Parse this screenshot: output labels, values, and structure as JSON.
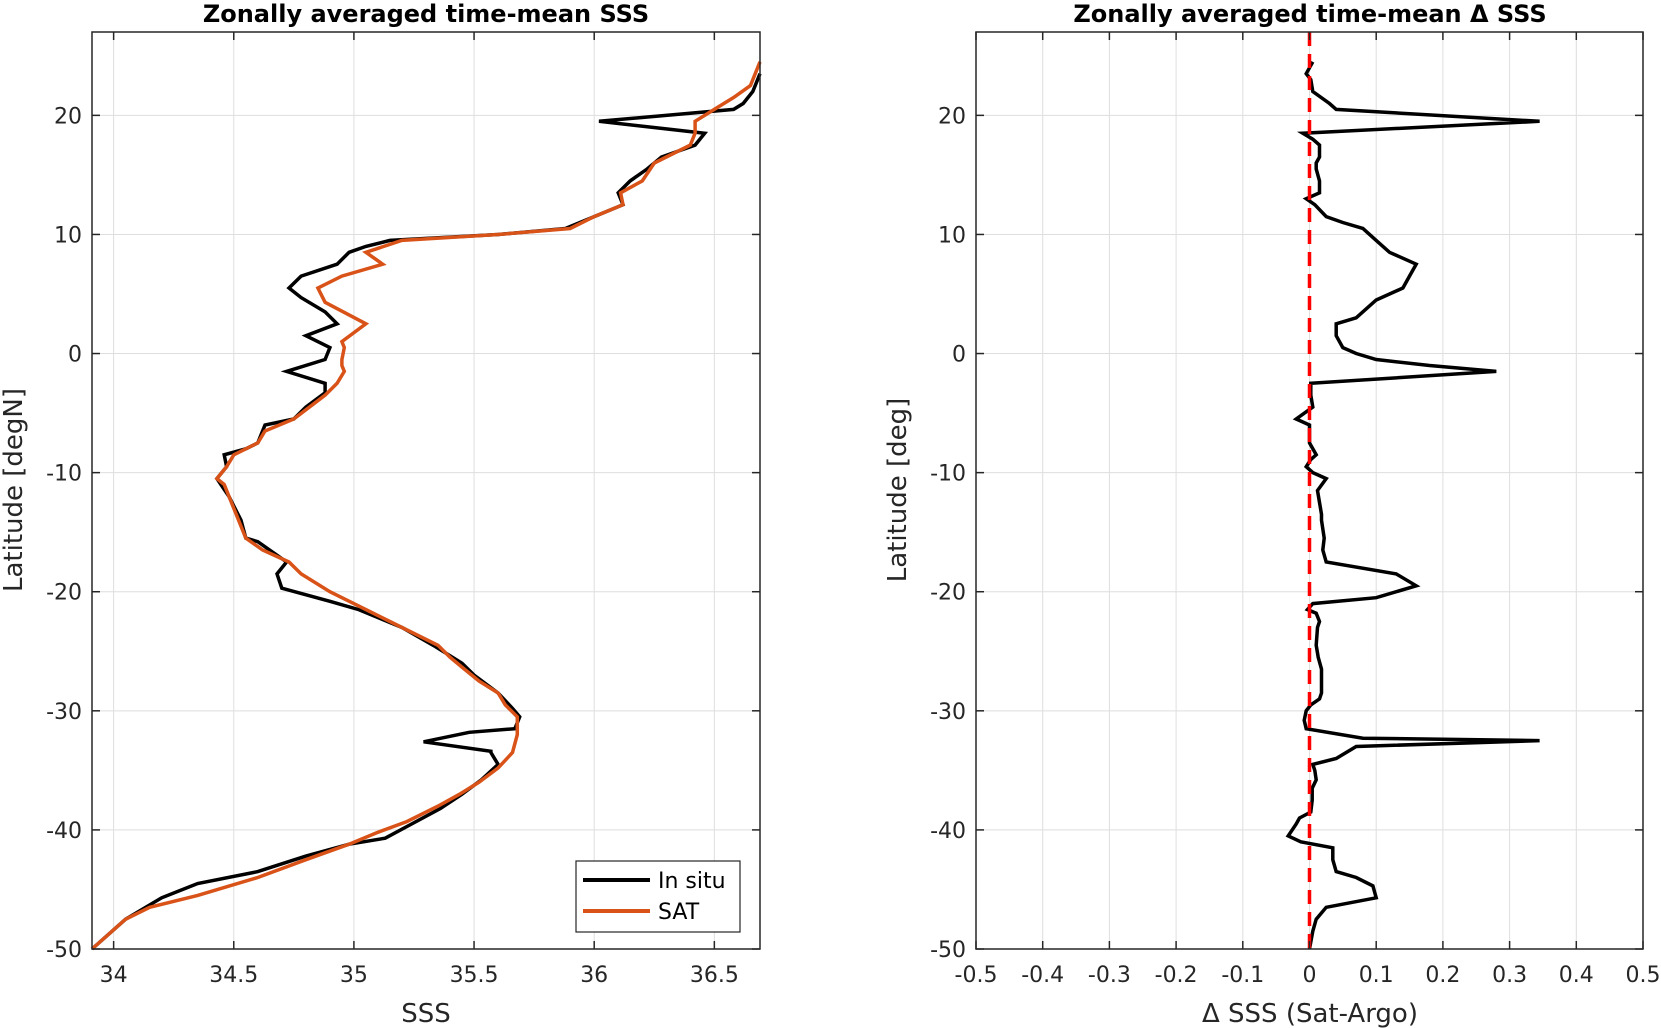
{
  "chart_data": [
    {
      "type": "line",
      "title": "Zonally averaged time-mean SSS",
      "xlabel": "SSS",
      "ylabel": "Latitude [degN]",
      "xlim": [
        33.91,
        36.69
      ],
      "ylim": [
        -50,
        27
      ],
      "xticks": [
        "34",
        "34.5",
        "35",
        "35.5",
        "36",
        "36.5"
      ],
      "yticks": [
        "-50",
        "-40",
        "-30",
        "-20",
        "-10",
        "0",
        "10",
        "20"
      ],
      "grid": true,
      "legend": "bottom-right",
      "series": [
        {
          "name": "In situ",
          "color": "#000000",
          "points": [
            [
              33.91,
              -50
            ],
            [
              34.05,
              -47.5
            ],
            [
              34.2,
              -45.7
            ],
            [
              34.35,
              -44.5
            ],
            [
              34.6,
              -43.5
            ],
            [
              34.8,
              -42.2
            ],
            [
              34.98,
              -41.2
            ],
            [
              35.13,
              -40.7
            ],
            [
              35.24,
              -39.5
            ],
            [
              35.36,
              -38.2
            ],
            [
              35.45,
              -37
            ],
            [
              35.53,
              -35.8
            ],
            [
              35.6,
              -34.5
            ],
            [
              35.57,
              -33.5
            ],
            [
              35.57,
              -33.4
            ],
            [
              35.29,
              -32.6
            ],
            [
              35.48,
              -31.8
            ],
            [
              35.67,
              -31.5
            ],
            [
              35.69,
              -30.5
            ],
            [
              35.66,
              -29.8
            ],
            [
              35.6,
              -28.5
            ],
            [
              35.5,
              -27
            ],
            [
              35.45,
              -26
            ],
            [
              35.33,
              -24.5
            ],
            [
              35.2,
              -23
            ],
            [
              35.02,
              -21.5
            ],
            [
              34.9,
              -20.8
            ],
            [
              34.7,
              -19.7
            ],
            [
              34.68,
              -18.5
            ],
            [
              34.72,
              -17.5
            ],
            [
              34.6,
              -15.8
            ],
            [
              34.55,
              -15.5
            ],
            [
              34.53,
              -14
            ],
            [
              34.48,
              -12
            ],
            [
              34.43,
              -10.5
            ],
            [
              34.47,
              -9.5
            ],
            [
              34.46,
              -8.5
            ],
            [
              34.55,
              -8
            ],
            [
              34.6,
              -7.5
            ],
            [
              34.63,
              -6
            ],
            [
              34.75,
              -5.5
            ],
            [
              34.8,
              -4.5
            ],
            [
              34.88,
              -3.3
            ],
            [
              34.88,
              -2.5
            ],
            [
              34.72,
              -1.5
            ],
            [
              34.88,
              -0.5
            ],
            [
              34.9,
              0.5
            ],
            [
              34.8,
              1.5
            ],
            [
              34.93,
              2.5
            ],
            [
              34.88,
              3.5
            ],
            [
              34.78,
              4.7
            ],
            [
              34.73,
              5.5
            ],
            [
              34.78,
              6.5
            ],
            [
              34.93,
              7.5
            ],
            [
              34.98,
              8.5
            ],
            [
              35.05,
              9
            ],
            [
              35.15,
              9.5
            ],
            [
              35.6,
              10
            ],
            [
              35.88,
              10.5
            ],
            [
              36,
              11.5
            ],
            [
              36.12,
              12.5
            ],
            [
              36.1,
              13.5
            ],
            [
              36.15,
              14.5
            ],
            [
              36.22,
              15.5
            ],
            [
              36.28,
              16.5
            ],
            [
              36.42,
              17.5
            ],
            [
              36.46,
              18.5
            ],
            [
              36.02,
              19.5
            ],
            [
              36.58,
              20.5
            ],
            [
              36.62,
              21
            ],
            [
              36.66,
              22
            ],
            [
              36.69,
              23.5
            ]
          ]
        },
        {
          "name": "SAT",
          "color": "#d95319",
          "points": [
            [
              33.91,
              -50
            ],
            [
              34.05,
              -47.5
            ],
            [
              34.15,
              -46.5
            ],
            [
              34.35,
              -45.5
            ],
            [
              34.6,
              -44
            ],
            [
              34.8,
              -42.5
            ],
            [
              34.98,
              -41.2
            ],
            [
              35.1,
              -40.2
            ],
            [
              35.22,
              -39.3
            ],
            [
              35.35,
              -38
            ],
            [
              35.44,
              -37
            ],
            [
              35.52,
              -36
            ],
            [
              35.6,
              -34.8
            ],
            [
              35.66,
              -33.5
            ],
            [
              35.68,
              -32
            ],
            [
              35.68,
              -30.5
            ],
            [
              35.63,
              -29.5
            ],
            [
              35.6,
              -28.5
            ],
            [
              35.52,
              -27.5
            ],
            [
              35.46,
              -26.5
            ],
            [
              35.4,
              -25.5
            ],
            [
              35.35,
              -24.5
            ],
            [
              35.2,
              -23
            ],
            [
              35.05,
              -21.5
            ],
            [
              34.9,
              -20
            ],
            [
              34.78,
              -18.5
            ],
            [
              34.73,
              -17.5
            ],
            [
              34.62,
              -16.5
            ],
            [
              34.55,
              -15.5
            ],
            [
              34.5,
              -13
            ],
            [
              34.46,
              -11
            ],
            [
              34.43,
              -10.5
            ],
            [
              34.47,
              -9.5
            ],
            [
              34.5,
              -8.5
            ],
            [
              34.6,
              -7.5
            ],
            [
              34.63,
              -6.5
            ],
            [
              34.75,
              -5.5
            ],
            [
              34.88,
              -3.5
            ],
            [
              34.93,
              -2.5
            ],
            [
              34.96,
              -1.5
            ],
            [
              34.95,
              -1
            ],
            [
              34.95,
              -0.5
            ],
            [
              34.96,
              0.5
            ],
            [
              34.95,
              1
            ],
            [
              35.05,
              2.5
            ],
            [
              34.88,
              4.3
            ],
            [
              34.85,
              5.5
            ],
            [
              34.95,
              6.5
            ],
            [
              35.12,
              7.5
            ],
            [
              35.05,
              8.5
            ],
            [
              35.2,
              9.5
            ],
            [
              35.6,
              10
            ],
            [
              35.9,
              10.5
            ],
            [
              36,
              11.5
            ],
            [
              36.12,
              12.5
            ],
            [
              36.11,
              13.5
            ],
            [
              36.2,
              14.5
            ],
            [
              36.25,
              16
            ],
            [
              36.3,
              16.5
            ],
            [
              36.4,
              17.5
            ],
            [
              36.42,
              18.5
            ],
            [
              36.42,
              19.5
            ],
            [
              36.5,
              20.5
            ],
            [
              36.58,
              21.5
            ],
            [
              36.65,
              22.5
            ],
            [
              36.69,
              24.5
            ]
          ]
        }
      ]
    },
    {
      "type": "line",
      "title": "Zonally averaged time-mean Δ SSS",
      "xlabel": "Δ SSS (Sat-Argo)",
      "ylabel": "Latitude [deg]",
      "xlim": [
        -0.5,
        0.5
      ],
      "ylim": [
        -50,
        27
      ],
      "xticks": [
        "-0.5",
        "-0.4",
        "-0.3",
        "-0.2",
        "-0.1",
        "0",
        "0.1",
        "0.2",
        "0.3",
        "0.4",
        "0.5"
      ],
      "yticks": [
        "-50",
        "-40",
        "-30",
        "-20",
        "-10",
        "0",
        "10",
        "20"
      ],
      "grid": true,
      "reference_line": {
        "x": 0,
        "color": "#ff0000",
        "style": "dashed"
      },
      "series": [
        {
          "color": "#000000",
          "points": [
            [
              0,
              -50
            ],
            [
              0.005,
              -48.5
            ],
            [
              0.01,
              -47.5
            ],
            [
              0.025,
              -46.5
            ],
            [
              0.1,
              -45.7
            ],
            [
              0.095,
              -44.7
            ],
            [
              0.07,
              -44
            ],
            [
              0.04,
              -43.5
            ],
            [
              0.035,
              -42.5
            ],
            [
              0.035,
              -41.5
            ],
            [
              -0.013,
              -41
            ],
            [
              -0.032,
              -40.5
            ],
            [
              -0.02,
              -39.5
            ],
            [
              -0.015,
              -39
            ],
            [
              0.002,
              -38.5
            ],
            [
              0.004,
              -37.5
            ],
            [
              0.004,
              -36.5
            ],
            [
              0.01,
              -35.8
            ],
            [
              0.008,
              -35
            ],
            [
              0.005,
              -34.5
            ],
            [
              0.04,
              -34
            ],
            [
              0.07,
              -33
            ],
            [
              0.345,
              -32.5
            ],
            [
              0.08,
              -32.3
            ],
            [
              -0.005,
              -31.5
            ],
            [
              -0.008,
              -30.8
            ],
            [
              -0.005,
              -30
            ],
            [
              0.002,
              -29.5
            ],
            [
              0.015,
              -29
            ],
            [
              0.018,
              -28.5
            ],
            [
              0.018,
              -26.5
            ],
            [
              0.013,
              -25.5
            ],
            [
              0.01,
              -24.5
            ],
            [
              0.012,
              -23
            ],
            [
              0.015,
              -22.5
            ],
            [
              0.01,
              -21.8
            ],
            [
              -0.003,
              -21.5
            ],
            [
              0.005,
              -21
            ],
            [
              0.1,
              -20.5
            ],
            [
              0.16,
              -19.5
            ],
            [
              0.13,
              -18.5
            ],
            [
              0.025,
              -17.5
            ],
            [
              0.02,
              -16.5
            ],
            [
              0.022,
              -15.5
            ],
            [
              0.018,
              -14
            ],
            [
              0.018,
              -13.5
            ],
            [
              0.015,
              -12.5
            ],
            [
              0.012,
              -11.5
            ],
            [
              0.025,
              -10.5
            ],
            [
              0.005,
              -10
            ],
            [
              -0.005,
              -9.5
            ],
            [
              0.002,
              -8.9
            ],
            [
              0.01,
              -8.5
            ],
            [
              0,
              -7.5
            ],
            [
              0,
              -6
            ],
            [
              -0.02,
              -5.5
            ],
            [
              0.005,
              -4.5
            ],
            [
              0.002,
              -3.5
            ],
            [
              0.002,
              -2.5
            ],
            [
              0.28,
              -1.5
            ],
            [
              0.18,
              -1
            ],
            [
              0.1,
              -0.5
            ],
            [
              0.07,
              0
            ],
            [
              0.05,
              0.5
            ],
            [
              0.04,
              1.5
            ],
            [
              0.04,
              2.5
            ],
            [
              0.07,
              3
            ],
            [
              0.1,
              4.5
            ],
            [
              0.14,
              5.5
            ],
            [
              0.15,
              6.5
            ],
            [
              0.16,
              7.5
            ],
            [
              0.12,
              8.5
            ],
            [
              0.1,
              9.5
            ],
            [
              0.08,
              10.5
            ],
            [
              0.05,
              11
            ],
            [
              0.025,
              11.5
            ],
            [
              0.008,
              12.5
            ],
            [
              -0.005,
              13
            ],
            [
              0.015,
              13.5
            ],
            [
              0.015,
              14.5
            ],
            [
              0.01,
              15.5
            ],
            [
              0.01,
              16
            ],
            [
              0.015,
              16.5
            ],
            [
              0.015,
              17.5
            ],
            [
              0.005,
              18
            ],
            [
              -0.01,
              18.5
            ],
            [
              0.345,
              19.5
            ],
            [
              0.04,
              20.5
            ],
            [
              0.03,
              21
            ],
            [
              0.005,
              22
            ],
            [
              0.002,
              23
            ],
            [
              -0.005,
              23.5
            ],
            [
              0.005,
              24.5
            ]
          ]
        }
      ]
    }
  ]
}
